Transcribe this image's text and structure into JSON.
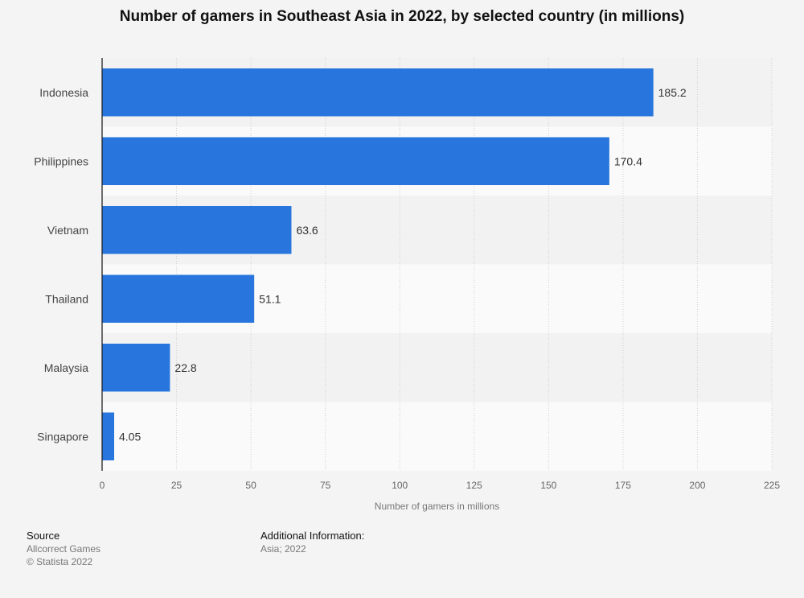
{
  "chart_data": {
    "type": "bar",
    "orientation": "horizontal",
    "title": "Number of gamers in Southeast Asia in 2022, by selected country (in millions)",
    "categories": [
      "Indonesia",
      "Philippines",
      "Vietnam",
      "Thailand",
      "Malaysia",
      "Singapore"
    ],
    "values": [
      185.2,
      170.4,
      63.6,
      51.1,
      22.8,
      4.05
    ],
    "value_labels": [
      "185.2",
      "170.4",
      "63.6",
      "51.1",
      "22.8",
      "4.05"
    ],
    "xlabel": "Number of gamers in millions",
    "ylabel": "",
    "xlim": [
      0,
      225
    ],
    "xticks": [
      0,
      25,
      50,
      75,
      100,
      125,
      150,
      175,
      200,
      225
    ],
    "grid": true,
    "bar_color": "#2876dd"
  },
  "footer": {
    "source_heading": "Source",
    "source_lines": [
      "Allcorrect Games",
      "© Statista 2022"
    ],
    "info_heading": "Additional Information:",
    "info_lines": [
      "Asia; 2022"
    ]
  }
}
